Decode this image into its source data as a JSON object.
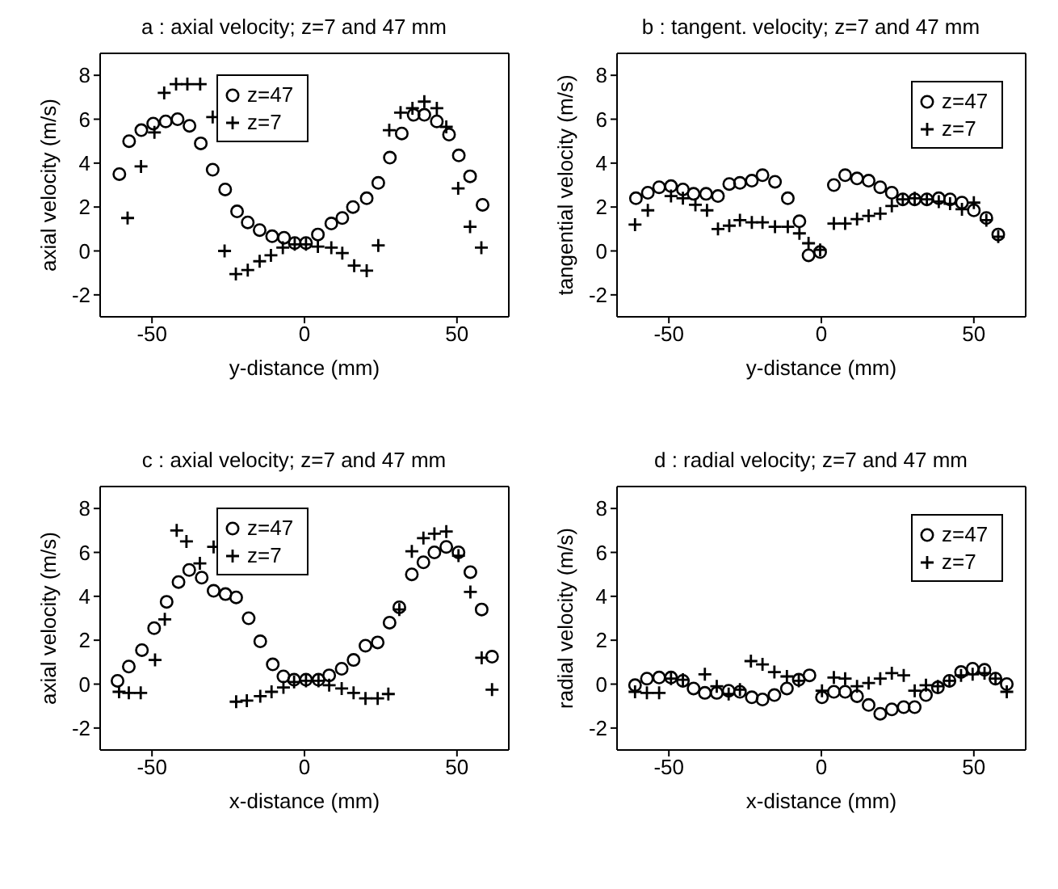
{
  "chart_data": [
    {
      "type": "scatter",
      "title": "a : axial velocity; z=7 and 47 mm",
      "xlabel": "y-distance (mm)",
      "ylabel": "axial velocity (m/s)",
      "xlim": [
        -67,
        67
      ],
      "ylim": [
        -3,
        9
      ],
      "xticks": [
        -50,
        0,
        50
      ],
      "yticks": [
        -2,
        0,
        2,
        4,
        6,
        8
      ],
      "legend": "top",
      "series": [
        {
          "name": "z=47",
          "color": "#000000",
          "marker": "circle",
          "x": [
            -60.7,
            -57.5,
            -53.5,
            -49.6,
            -45.5,
            -41.6,
            -37.7,
            -34,
            -30.1,
            -26,
            -22.1,
            -18.6,
            -14.7,
            -10.6,
            -6.7,
            -3.2,
            0.5,
            4.4,
            8.8,
            12.4,
            15.9,
            20.4,
            24.2,
            28,
            31.9,
            35.8,
            39.3,
            43.4,
            47.4,
            50.6,
            54.3,
            58.4
          ],
          "values": [
            3.5,
            5.0,
            5.5,
            5.8,
            5.9,
            6.0,
            5.7,
            4.9,
            3.7,
            2.8,
            1.8,
            1.3,
            0.95,
            0.67,
            0.6,
            0.36,
            0.36,
            0.75,
            1.25,
            1.5,
            2.0,
            2.4,
            3.1,
            4.25,
            5.35,
            6.2,
            6.2,
            5.9,
            5.3,
            4.35,
            3.4,
            2.1
          ]
        },
        {
          "name": "z=7",
          "color": "#000000",
          "marker": "cross",
          "x": [
            -58,
            -53.6,
            -49.2,
            -46,
            -42.1,
            -38.4,
            -34.2,
            -30.1,
            -26.2,
            -22.5,
            -18.6,
            -14.7,
            -11,
            -7.1,
            -3.2,
            0.5,
            4.4,
            8.8,
            12.4,
            16.3,
            20.4,
            24.2,
            27.8,
            31.5,
            35.4,
            39.3,
            43.4,
            46.5,
            50.4,
            54.3,
            58
          ],
          "values": [
            1.5,
            3.85,
            5.4,
            7.2,
            7.6,
            7.6,
            7.6,
            6.1,
            0,
            -1.05,
            -0.87,
            -0.47,
            -0.2,
            0.15,
            0.3,
            0.3,
            0.2,
            0.15,
            -0.1,
            -0.67,
            -0.9,
            0.25,
            5.5,
            6.3,
            6.5,
            6.8,
            6.5,
            5.65,
            2.85,
            1.1,
            0.15
          ]
        }
      ]
    },
    {
      "type": "scatter",
      "title": "b : tangent. velocity; z=7 and 47 mm",
      "xlabel": "y-distance (mm)",
      "ylabel": "tangential velocity (m/s)",
      "xlim": [
        -67,
        67
      ],
      "ylim": [
        -3,
        9
      ],
      "xticks": [
        -50,
        0,
        50
      ],
      "yticks": [
        -2,
        0,
        2,
        4,
        6,
        8
      ],
      "legend": "top right",
      "series": [
        {
          "name": "z=47",
          "color": "#000000",
          "marker": "circle",
          "x": [
            -60.8,
            -56.9,
            -53.2,
            -49.3,
            -45.4,
            -41.9,
            -37.8,
            -33.9,
            -30.2,
            -26.7,
            -22.8,
            -19.3,
            -15.2,
            -11,
            -7.2,
            -4.2,
            -0.4,
            4.1,
            7.8,
            11.7,
            15.5,
            19.3,
            23.1,
            26.7,
            30.6,
            34.6,
            38.5,
            42.2,
            46.1,
            50,
            54.1,
            58
          ],
          "values": [
            2.4,
            2.65,
            2.9,
            2.95,
            2.8,
            2.6,
            2.6,
            2.5,
            3.05,
            3.1,
            3.2,
            3.45,
            3.15,
            2.4,
            1.35,
            -0.2,
            -0.05,
            3.0,
            3.45,
            3.3,
            3.2,
            2.9,
            2.65,
            2.35,
            2.35,
            2.35,
            2.4,
            2.35,
            2.2,
            1.85,
            1.5,
            0.75
          ]
        },
        {
          "name": "z=7",
          "color": "#000000",
          "marker": "cross",
          "x": [
            -61.1,
            -56.9,
            -49.3,
            -45.4,
            -41.3,
            -37.5,
            -33.9,
            -30.2,
            -26.7,
            -22.8,
            -19.3,
            -15.2,
            -11,
            -7.2,
            -4.2,
            -0.4,
            4.1,
            7.8,
            11.7,
            15.5,
            19.3,
            23.1,
            26.7,
            30.6,
            34.6,
            38.5,
            42.2,
            46.1,
            50,
            54.1,
            58
          ],
          "values": [
            1.2,
            1.85,
            2.5,
            2.4,
            2.1,
            1.85,
            1.0,
            1.15,
            1.4,
            1.3,
            1.3,
            1.1,
            1.1,
            0.8,
            0.35,
            0.05,
            1.25,
            1.25,
            1.45,
            1.6,
            1.7,
            2.05,
            2.35,
            2.4,
            2.35,
            2.25,
            2.15,
            1.9,
            2.2,
            1.4,
            0.65
          ]
        }
      ]
    },
    {
      "type": "scatter",
      "title": "c : axial velocity; z=7 and 47 mm",
      "xlabel": "x-distance (mm)",
      "ylabel": "axial velocity (m/s)",
      "xlim": [
        -67,
        67
      ],
      "ylim": [
        -3,
        9
      ],
      "xticks": [
        -50,
        0,
        50
      ],
      "yticks": [
        -2,
        0,
        2,
        4,
        6,
        8
      ],
      "legend": "top",
      "series": [
        {
          "name": "z=47",
          "color": "#000000",
          "marker": "circle",
          "x": [
            -61.3,
            -57.6,
            -53.3,
            -49.3,
            -45.2,
            -41.3,
            -37.8,
            -33.7,
            -29.8,
            -25.9,
            -22.4,
            -18.3,
            -14.5,
            -10.4,
            -6.9,
            -3.4,
            0.5,
            4.6,
            8.1,
            12.2,
            16.1,
            20,
            24,
            27.9,
            31.1,
            35.2,
            39,
            42.6,
            46.5,
            50.5,
            54.4,
            58.1,
            61.5
          ],
          "values": [
            0.15,
            0.8,
            1.55,
            2.55,
            3.75,
            4.65,
            5.2,
            4.85,
            4.25,
            4.1,
            3.95,
            3.0,
            1.95,
            0.9,
            0.35,
            0.2,
            0.2,
            0.2,
            0.4,
            0.7,
            1.1,
            1.75,
            1.9,
            2.8,
            3.5,
            5.0,
            5.55,
            6.0,
            6.25,
            6.0,
            5.1,
            3.4,
            1.25
          ]
        },
        {
          "name": "z=7",
          "color": "#000000",
          "marker": "cross",
          "x": [
            -60.8,
            -57.6,
            -53.7,
            -49,
            -45.8,
            -41.9,
            -38.7,
            -34.3,
            -29.8,
            -22.4,
            -18.9,
            -14.5,
            -10.8,
            -6.9,
            -3.4,
            0.5,
            4.6,
            8.1,
            12.2,
            16.1,
            20,
            24,
            27.5,
            31.1,
            35.2,
            39,
            42.6,
            46.5,
            50.5,
            54.4,
            58.1,
            61.5
          ],
          "values": [
            -0.35,
            -0.4,
            -0.4,
            1.1,
            2.95,
            7.0,
            6.5,
            5.5,
            6.25,
            -0.8,
            -0.75,
            -0.55,
            -0.35,
            -0.15,
            0.1,
            0.15,
            0.15,
            -0.05,
            -0.2,
            -0.4,
            -0.65,
            -0.65,
            -0.45,
            3.4,
            6.05,
            6.65,
            6.85,
            6.95,
            5.85,
            4.2,
            1.2,
            -0.25
          ]
        }
      ]
    },
    {
      "type": "scatter",
      "title": "d : radial velocity; z=7 and 47 mm",
      "xlabel": "x-distance (mm)",
      "ylabel": "radial velocity (m/s)",
      "xlim": [
        -67,
        67
      ],
      "ylim": [
        -3,
        9
      ],
      "xticks": [
        -50,
        0,
        50
      ],
      "yticks": [
        -2,
        0,
        2,
        4,
        6,
        8
      ],
      "legend": "top right",
      "series": [
        {
          "name": "z=47",
          "color": "#000000",
          "marker": "circle",
          "x": [
            -61.1,
            -57.2,
            -53.2,
            -49.3,
            -45.4,
            -41.9,
            -38.2,
            -34.3,
            -30.4,
            -26.7,
            -22.8,
            -19.3,
            -15.4,
            -11.3,
            -7.4,
            -3.9,
            0.2,
            4.1,
            7.8,
            11.7,
            15.5,
            19.3,
            23.1,
            27,
            30.6,
            34.3,
            38.2,
            42,
            45.8,
            49.6,
            53.5,
            57.1,
            60.8
          ],
          "values": [
            -0.05,
            0.25,
            0.3,
            0.3,
            0.15,
            -0.2,
            -0.4,
            -0.4,
            -0.3,
            -0.35,
            -0.6,
            -0.7,
            -0.5,
            -0.2,
            0.2,
            0.4,
            -0.6,
            -0.35,
            -0.35,
            -0.55,
            -0.95,
            -1.35,
            -1.15,
            -1.05,
            -1.05,
            -0.5,
            -0.15,
            0.15,
            0.55,
            0.7,
            0.65,
            0.25,
            0
          ]
        },
        {
          "name": "z=7",
          "color": "#000000",
          "marker": "cross",
          "x": [
            -61.1,
            -57.2,
            -53.2,
            -49.3,
            -45.4,
            -38.2,
            -34.3,
            -30.4,
            -26.7,
            -23.1,
            -19.3,
            -15.4,
            -11.3,
            -7.4,
            0.2,
            4.1,
            7.8,
            11.7,
            15.5,
            19.3,
            23.1,
            27,
            30.6,
            34.3,
            38.2,
            42,
            45.8,
            49.6,
            53.5,
            57.1,
            60.8
          ],
          "values": [
            -0.35,
            -0.4,
            -0.4,
            0.25,
            0.2,
            0.45,
            -0.1,
            -0.45,
            -0.25,
            1.05,
            0.9,
            0.55,
            0.35,
            0.15,
            -0.3,
            0.3,
            0.25,
            -0.1,
            0.05,
            0.25,
            0.5,
            0.4,
            -0.3,
            -0.05,
            -0.1,
            0.15,
            0.4,
            0.45,
            0.5,
            0.25,
            -0.35
          ]
        }
      ]
    }
  ]
}
